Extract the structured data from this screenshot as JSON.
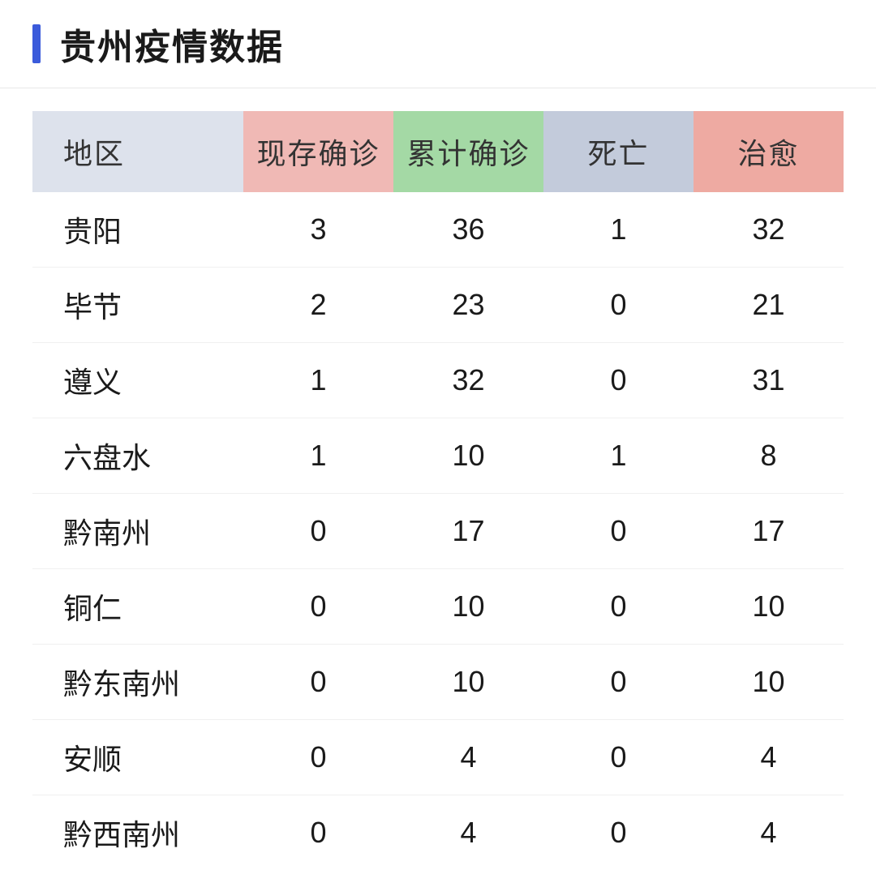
{
  "header": {
    "title": "贵州疫情数据",
    "bar_color": "#3b5bdb"
  },
  "table": {
    "columns": [
      {
        "label": "地区",
        "key": "region",
        "header_bg": "#dde2ec"
      },
      {
        "label": "现存确诊",
        "key": "current",
        "header_bg": "#f0b9b5"
      },
      {
        "label": "累计确诊",
        "key": "total",
        "header_bg": "#a4d9a5"
      },
      {
        "label": "死亡",
        "key": "deaths",
        "header_bg": "#c3cbdb"
      },
      {
        "label": "治愈",
        "key": "cured",
        "header_bg": "#eeaaa2"
      }
    ],
    "rows": [
      {
        "region": "贵阳",
        "current": "3",
        "total": "36",
        "deaths": "1",
        "cured": "32"
      },
      {
        "region": "毕节",
        "current": "2",
        "total": "23",
        "deaths": "0",
        "cured": "21"
      },
      {
        "region": "遵义",
        "current": "1",
        "total": "32",
        "deaths": "0",
        "cured": "31"
      },
      {
        "region": "六盘水",
        "current": "1",
        "total": "10",
        "deaths": "1",
        "cured": "8"
      },
      {
        "region": "黔南州",
        "current": "0",
        "total": "17",
        "deaths": "0",
        "cured": "17"
      },
      {
        "region": "铜仁",
        "current": "0",
        "total": "10",
        "deaths": "0",
        "cured": "10"
      },
      {
        "region": "黔东南州",
        "current": "0",
        "total": "10",
        "deaths": "0",
        "cured": "10"
      },
      {
        "region": "安顺",
        "current": "0",
        "total": "4",
        "deaths": "0",
        "cured": "4"
      },
      {
        "region": "黔西南州",
        "current": "0",
        "total": "4",
        "deaths": "0",
        "cured": "4"
      }
    ],
    "row_border_color": "#f0f0f0",
    "text_color": "#1a1a1a",
    "fontsize": 36
  }
}
